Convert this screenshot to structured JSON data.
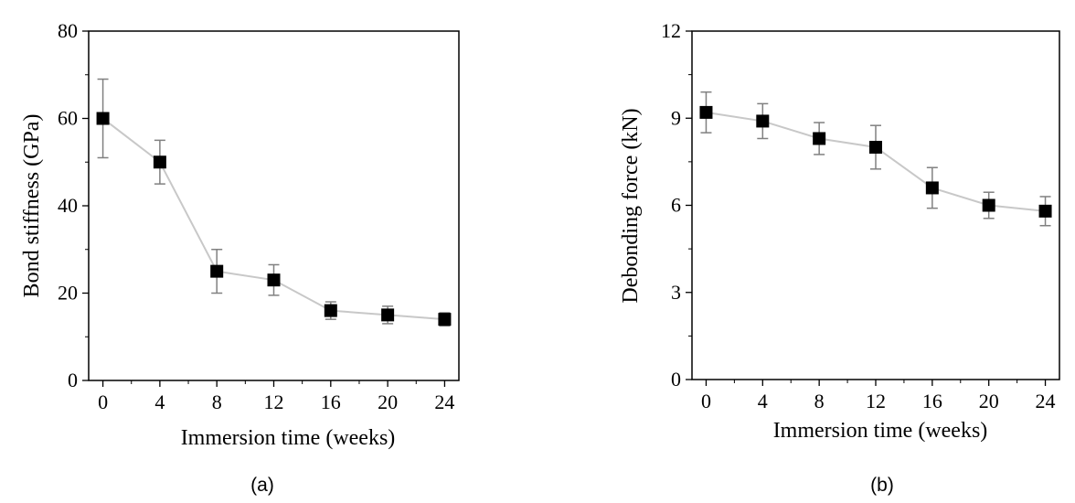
{
  "chart_data": [
    {
      "type": "line",
      "panel_label": "(a)",
      "xlabel": "Immersion time (weeks)",
      "ylabel": "Bond stiffness (GPa)",
      "xticks": [
        "0",
        "4",
        "8",
        "12",
        "16",
        "20",
        "24"
      ],
      "yticks": [
        "0",
        "20",
        "40",
        "60",
        "80"
      ],
      "xlim": [
        -1,
        25
      ],
      "ylim": [
        0,
        80
      ],
      "x": [
        0,
        4,
        8,
        12,
        16,
        20,
        24
      ],
      "values": [
        60,
        50,
        25,
        23,
        16,
        15,
        14
      ],
      "errors": [
        9,
        5,
        5,
        3.5,
        2,
        2,
        1.5
      ],
      "grid": false,
      "line_color": "#c8c8c8",
      "marker_color": "#000000",
      "errorbar_color": "#808080"
    },
    {
      "type": "line",
      "panel_label": "(b)",
      "xlabel": "Immersion time (weeks)",
      "ylabel": "Debonding force (kN)",
      "xticks": [
        "0",
        "4",
        "8",
        "12",
        "16",
        "20",
        "24"
      ],
      "yticks": [
        "0",
        "3",
        "6",
        "9",
        "12"
      ],
      "xlim": [
        -1,
        25
      ],
      "ylim": [
        0,
        12
      ],
      "x": [
        0,
        4,
        8,
        12,
        16,
        20,
        24
      ],
      "values": [
        9.2,
        8.9,
        8.3,
        8.0,
        6.6,
        6.0,
        5.8
      ],
      "errors": [
        0.7,
        0.6,
        0.55,
        0.75,
        0.7,
        0.45,
        0.5
      ],
      "grid": false,
      "line_color": "#c8c8c8",
      "marker_color": "#000000",
      "errorbar_color": "#808080"
    }
  ]
}
